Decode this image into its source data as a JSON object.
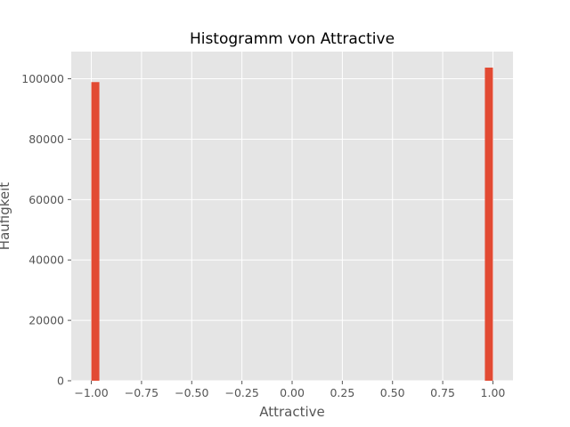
{
  "chart_data": {
    "type": "bar",
    "title": "Histogramm von Attractive",
    "xlabel": "Attractive",
    "ylabel": "Häufigkeit",
    "xlim": [
      -1.1,
      1.1
    ],
    "ylim": [
      0,
      109000
    ],
    "x_ticks": [
      "−1.00",
      "−0.75",
      "−0.50",
      "−0.25",
      "0.00",
      "0.25",
      "0.50",
      "0.75",
      "1.00"
    ],
    "x_tick_values": [
      -1.0,
      -0.75,
      -0.5,
      -0.25,
      0.0,
      0.25,
      0.5,
      0.75,
      1.0
    ],
    "y_ticks": [
      "0",
      "20000",
      "40000",
      "60000",
      "80000",
      "100000"
    ],
    "y_tick_values": [
      0,
      20000,
      40000,
      60000,
      80000,
      100000
    ],
    "grid": true,
    "bin_width": 0.04,
    "bins": [
      {
        "x_start": -1.0,
        "x_end": -0.96,
        "count": 98900
      },
      {
        "x_start": 0.96,
        "x_end": 1.0,
        "count": 103700
      }
    ],
    "bar_color": "#e24a33",
    "plot_background": "#e5e5e5",
    "grid_color": "#ffffff"
  }
}
